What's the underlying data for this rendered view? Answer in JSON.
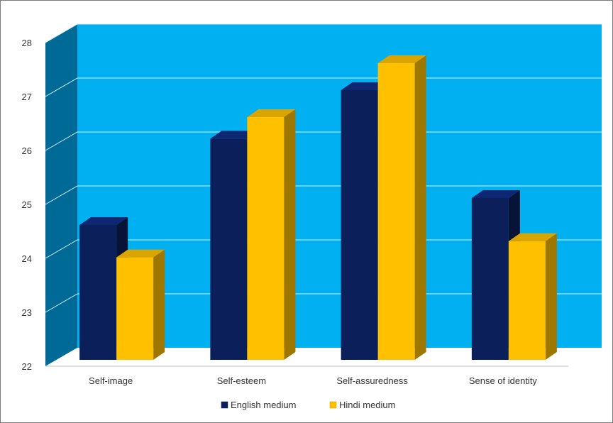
{
  "chart_data": {
    "type": "bar",
    "style": "3d-clustered-column",
    "categories": [
      "Self-image",
      "Self-esteem",
      "Self-assuredness",
      "Sense of identity"
    ],
    "series": [
      {
        "name": "English medium",
        "values": [
          24.5,
          26.1,
          27.0,
          25.0
        ],
        "color": "#0b1f5b"
      },
      {
        "name": "Hindi medium",
        "values": [
          23.9,
          26.5,
          27.5,
          24.2
        ],
        "color": "#ffc000"
      }
    ],
    "yticks": [
      22,
      23,
      24,
      25,
      26,
      27,
      28
    ],
    "ylim": [
      22,
      28
    ],
    "title": "",
    "xlabel": "",
    "ylabel": "",
    "grid": true,
    "legend": "bottom",
    "colors": {
      "plot_background": "#00b0f0",
      "side_wall": "#006a96",
      "floor": "#ffffff",
      "gridline": "#d8eef8"
    }
  }
}
